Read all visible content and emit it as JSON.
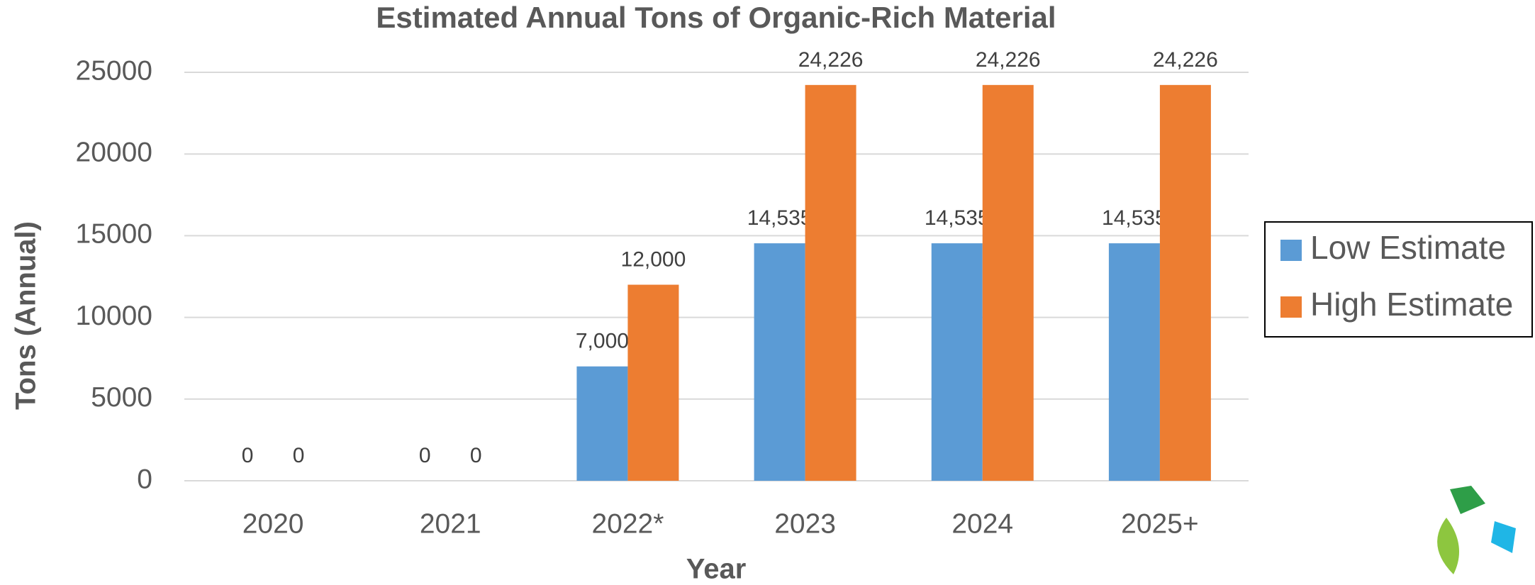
{
  "chart_data": {
    "type": "bar",
    "title": "Estimated Annual Tons of Organic-Rich Material",
    "x_label": "Year",
    "y_label": "Tons (Annual)",
    "categories": [
      "2020",
      "2021",
      "2022*",
      "2023",
      "2024",
      "2025+"
    ],
    "series": [
      {
        "name": "Low Estimate",
        "color": "#5b9bd5",
        "values": [
          0,
          0,
          7000,
          14535,
          14535,
          14535
        ],
        "value_labels": [
          "0",
          "0",
          "7,000",
          "14,535",
          "14,535",
          "14,535"
        ]
      },
      {
        "name": "High Estimate",
        "color": "#ed7d31",
        "values": [
          0,
          0,
          12000,
          24226,
          24226,
          24226
        ],
        "value_labels": [
          "0",
          "0",
          "12,000",
          "24,226",
          "24,226",
          "24,226"
        ]
      }
    ],
    "ylim": [
      0,
      25000
    ],
    "yticks": [
      0,
      5000,
      10000,
      15000,
      20000,
      25000
    ],
    "grid": true,
    "legend": "right"
  }
}
